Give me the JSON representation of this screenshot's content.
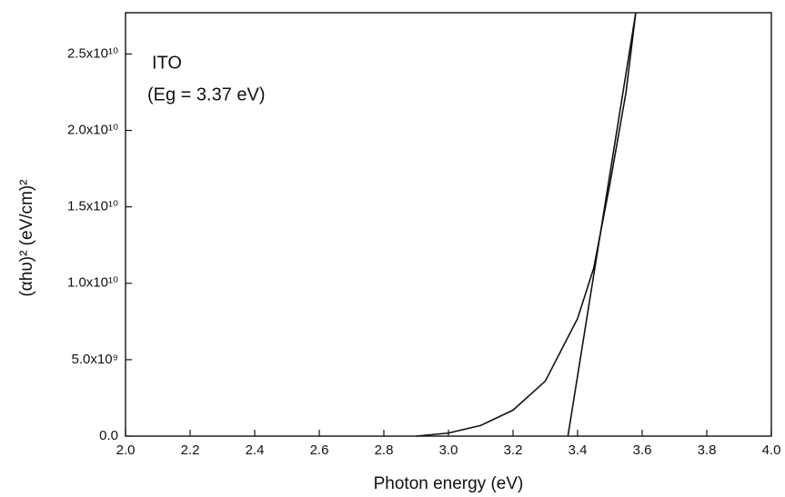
{
  "chart_data": {
    "type": "line",
    "y_label": "(αhυ)² (eV/cm)²",
    "x_label": "Photon energy (eV)",
    "annotations": [
      "ITO",
      "(Eg = 3.37 eV)"
    ],
    "series": [
      {
        "color": "#111111",
        "x": [
          2.9,
          3.0,
          3.1,
          3.2,
          3.3,
          3.4,
          3.45,
          3.5,
          3.55,
          3.58
        ],
        "values": [
          0,
          200000000,
          700000000,
          1700000000,
          3600000000,
          7700000000,
          11000000000,
          16500000000,
          22500000000,
          27700000000
        ]
      },
      {
        "color": "#111111",
        "x": [
          3.37,
          3.58
        ],
        "values": [
          0,
          27700000000
        ]
      }
    ],
    "xlim": [
      2.0,
      4.0
    ],
    "xticks": [
      {
        "value": 2.0,
        "label": "2.0"
      },
      2.2,
      2.4,
      2.6,
      2.8,
      {
        "value": 3.0,
        "label": "3.0"
      },
      3.2,
      3.4,
      3.6,
      3.8,
      {
        "value": 4.0,
        "label": "4.0"
      }
    ],
    "ylim": [
      0,
      27700000000
    ],
    "yticks": [
      {
        "value": 0,
        "label": "0.0"
      },
      {
        "value": 5000000000,
        "label": "5.0x10⁹"
      },
      {
        "value": 10000000000,
        "label": "1.0x10¹⁰"
      },
      {
        "value": 15000000000,
        "label": "1.5x10¹⁰"
      },
      {
        "value": 20000000000,
        "label": "2.0x10¹⁰"
      },
      {
        "value": 25000000000,
        "label": "2.5x10¹⁰"
      }
    ],
    "grid": false
  }
}
